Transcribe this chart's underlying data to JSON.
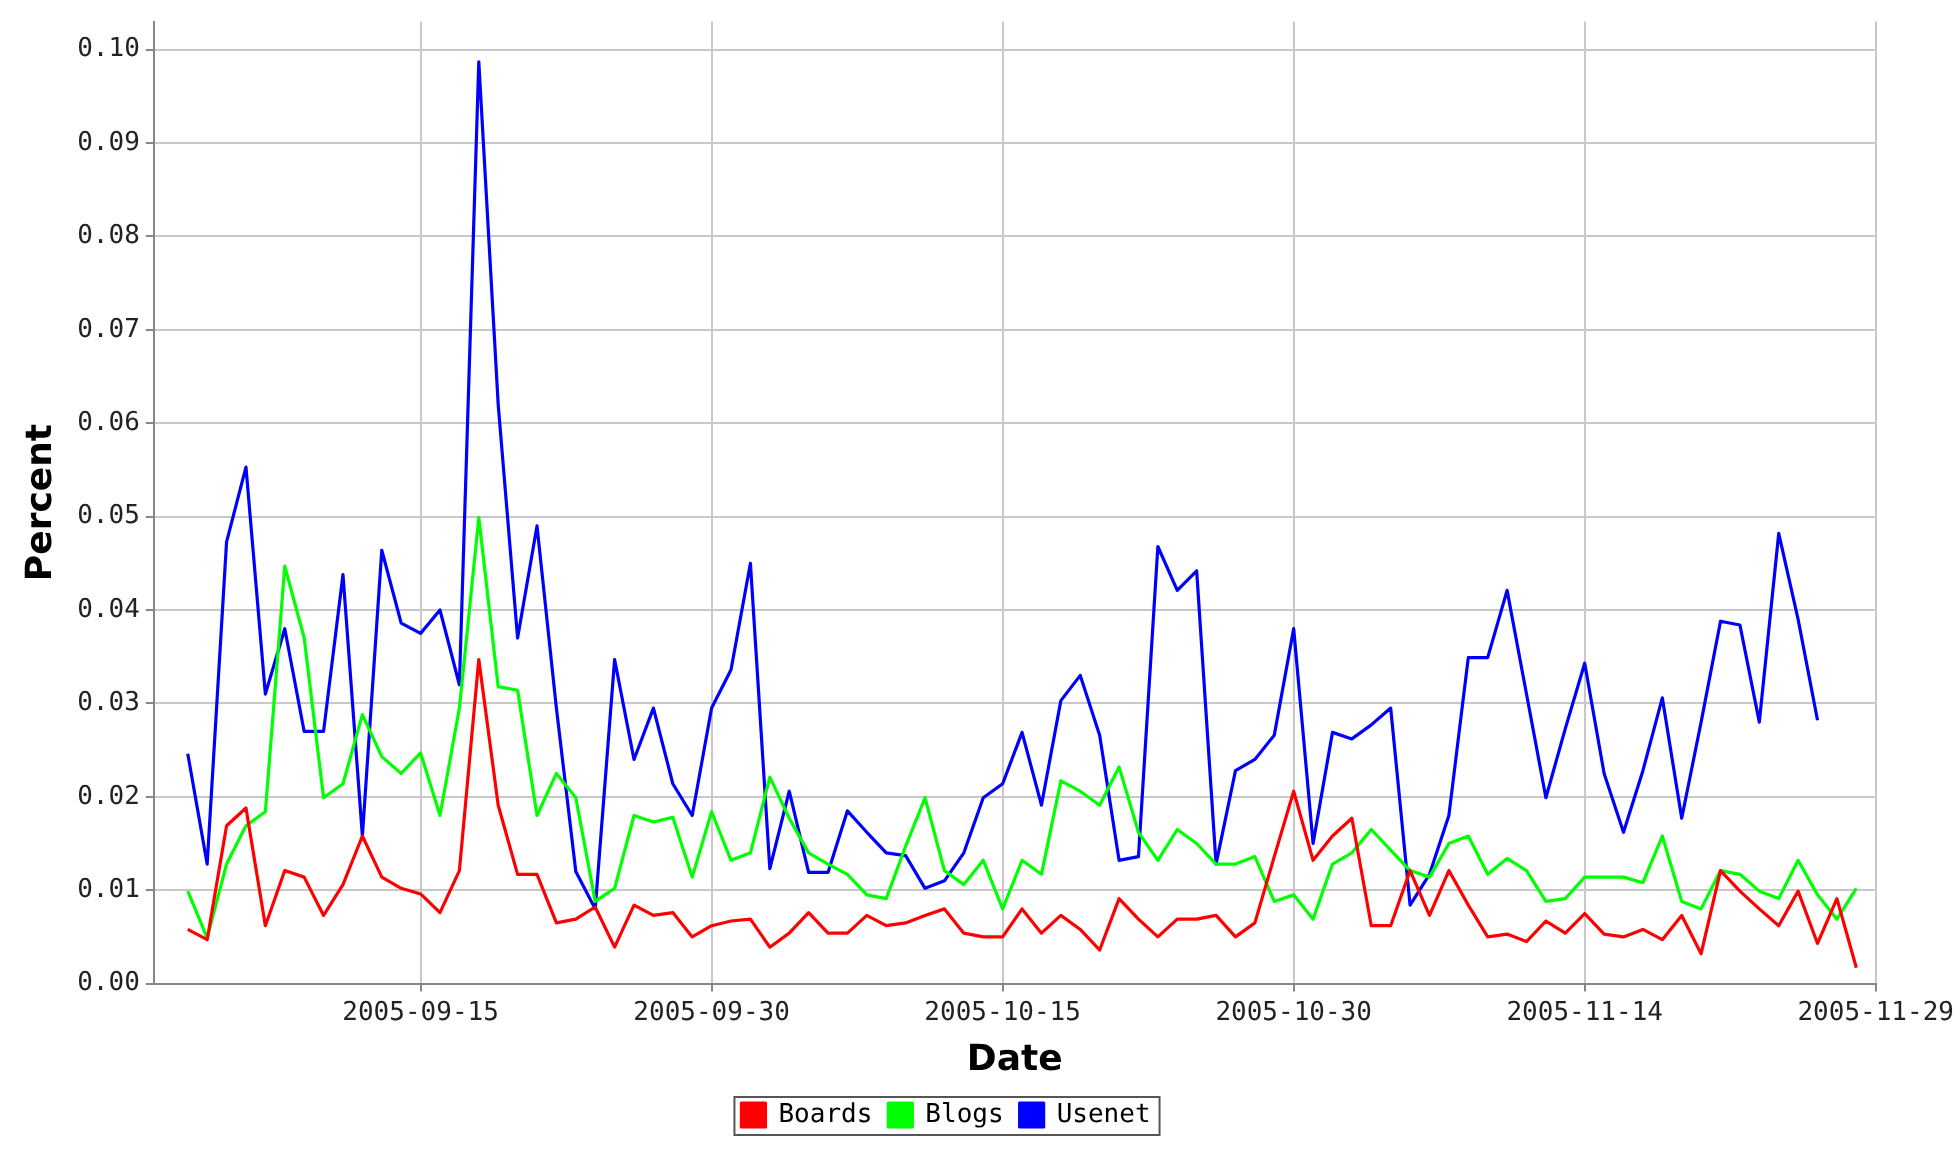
{
  "chart_data": {
    "type": "line",
    "xlabel": "Date",
    "ylabel": "Percent",
    "x": [
      "2005-09-03",
      "2005-09-04",
      "2005-09-05",
      "2005-09-06",
      "2005-09-07",
      "2005-09-08",
      "2005-09-09",
      "2005-09-10",
      "2005-09-11",
      "2005-09-12",
      "2005-09-13",
      "2005-09-14",
      "2005-09-15",
      "2005-09-16",
      "2005-09-17",
      "2005-09-18",
      "2005-09-19",
      "2005-09-20",
      "2005-09-21",
      "2005-09-22",
      "2005-09-23",
      "2005-09-24",
      "2005-09-25",
      "2005-09-26",
      "2005-09-27",
      "2005-09-28",
      "2005-09-29",
      "2005-09-30",
      "2005-10-01",
      "2005-10-02",
      "2005-10-03",
      "2005-10-04",
      "2005-10-05",
      "2005-10-06",
      "2005-10-07",
      "2005-10-08",
      "2005-10-09",
      "2005-10-10",
      "2005-10-11",
      "2005-10-12",
      "2005-10-13",
      "2005-10-14",
      "2005-10-15",
      "2005-10-16",
      "2005-10-17",
      "2005-10-18",
      "2005-10-19",
      "2005-10-20",
      "2005-10-21",
      "2005-10-22",
      "2005-10-23",
      "2005-10-24",
      "2005-10-25",
      "2005-10-26",
      "2005-10-27",
      "2005-10-28",
      "2005-10-29",
      "2005-10-30",
      "2005-10-31",
      "2005-11-01",
      "2005-11-02",
      "2005-11-03",
      "2005-11-04",
      "2005-11-05",
      "2005-11-06",
      "2005-11-07",
      "2005-11-08",
      "2005-11-09",
      "2005-11-10",
      "2005-11-11",
      "2005-11-12",
      "2005-11-13",
      "2005-11-14",
      "2005-11-15",
      "2005-11-16",
      "2005-11-17",
      "2005-11-18",
      "2005-11-19",
      "2005-11-20",
      "2005-11-21",
      "2005-11-22",
      "2005-11-23",
      "2005-11-24",
      "2005-11-25",
      "2005-11-26",
      "2005-11-27",
      "2005-11-28"
    ],
    "series": [
      {
        "name": "Boards",
        "color": "#ff0000",
        "values": [
          0.0058,
          0.0047,
          0.0169,
          0.0188,
          0.0062,
          0.0121,
          0.0114,
          0.0073,
          0.0106,
          0.0158,
          0.0114,
          0.0102,
          0.0096,
          0.0076,
          0.0121,
          0.0347,
          0.0191,
          0.0117,
          0.0117,
          0.0065,
          0.0069,
          0.0082,
          0.0039,
          0.0084,
          0.0073,
          0.0076,
          0.005,
          0.0062,
          0.0067,
          0.0069,
          0.0039,
          0.0054,
          0.0076,
          0.0054,
          0.0054,
          0.0073,
          0.0062,
          0.0065,
          0.0073,
          0.008,
          0.0054,
          0.005,
          0.005,
          0.008,
          0.0054,
          0.0073,
          0.0058,
          0.0036,
          0.0091,
          0.0069,
          0.005,
          0.0069,
          0.0069,
          0.0073,
          0.005,
          0.0065,
          0.0136,
          0.0206,
          0.0132,
          0.0158,
          0.0177,
          0.0062,
          0.0062,
          0.0121,
          0.0073,
          0.0121,
          0.0084,
          0.005,
          0.0053,
          0.0045,
          0.0067,
          0.0054,
          0.0075,
          0.0053,
          0.005,
          0.0058,
          0.0047,
          0.0073,
          0.0032,
          0.0121,
          0.0099,
          0.008,
          0.0062,
          0.0099,
          0.0043,
          0.0091,
          0.0017
        ]
      },
      {
        "name": "Blogs",
        "color": "#00ff00",
        "values": [
          0.0099,
          0.0049,
          0.0128,
          0.0169,
          0.0184,
          0.0447,
          0.037,
          0.0199,
          0.0214,
          0.0288,
          0.0243,
          0.0225,
          0.0247,
          0.018,
          0.0295,
          0.0499,
          0.0318,
          0.0314,
          0.018,
          0.0225,
          0.0199,
          0.0088,
          0.0102,
          0.018,
          0.0173,
          0.0178,
          0.0114,
          0.0184,
          0.0132,
          0.014,
          0.0221,
          0.0177,
          0.014,
          0.0128,
          0.0117,
          0.0095,
          0.0091,
          0.0147,
          0.0199,
          0.0121,
          0.0106,
          0.0132,
          0.008,
          0.0132,
          0.0117,
          0.0217,
          0.0206,
          0.0191,
          0.0232,
          0.0162,
          0.0132,
          0.0165,
          0.015,
          0.0128,
          0.0128,
          0.0136,
          0.0088,
          0.0095,
          0.0069,
          0.0128,
          0.014,
          0.0165,
          0.0143,
          0.0121,
          0.0114,
          0.015,
          0.0158,
          0.0117,
          0.0134,
          0.0121,
          0.0088,
          0.0091,
          0.0114,
          0.0114,
          0.0114,
          0.0108,
          0.0158,
          0.0088,
          0.008,
          0.0121,
          0.0117,
          0.0099,
          0.0091,
          0.0132,
          0.0095,
          0.0069,
          0.0102
        ]
      },
      {
        "name": "Usenet",
        "color": "#0000ff",
        "values": [
          0.0246,
          0.0128,
          0.0473,
          0.0553,
          0.031,
          0.038,
          0.027,
          0.027,
          0.0438,
          0.0158,
          0.0464,
          0.0386,
          0.0375,
          0.04,
          0.032,
          0.0987,
          0.062,
          0.037,
          0.049,
          0.0295,
          0.012,
          0.008,
          0.0347,
          0.024,
          0.0295,
          0.0214,
          0.018,
          0.0295,
          0.0336,
          0.045,
          0.0123,
          0.0206,
          0.0119,
          0.0119,
          0.0185,
          0.0162,
          0.014,
          0.0137,
          0.0102,
          0.011,
          0.014,
          0.0199,
          0.0214,
          0.0269,
          0.0191,
          0.0303,
          0.033,
          0.0266,
          0.0132,
          0.0136,
          0.0468,
          0.0421,
          0.0442,
          0.0128,
          0.0228,
          0.024,
          0.0266,
          0.038,
          0.015,
          0.0269,
          0.0262,
          0.0277,
          0.0295,
          0.0084,
          0.0117,
          0.018,
          0.0349,
          0.0349,
          0.0421,
          0.031,
          0.0199,
          0.0273,
          0.0343,
          0.0225,
          0.0162,
          0.0228,
          0.0306,
          0.0177,
          0.028,
          0.0388,
          0.0384,
          0.028,
          0.0482,
          0.039,
          0.0282,
          null,
          null
        ]
      }
    ],
    "xlim": [
      "2005-09-01T06:00",
      "2005-11-29"
    ],
    "xticks": [
      "2005-09-15",
      "2005-09-30",
      "2005-10-15",
      "2005-10-30",
      "2005-11-14",
      "2005-11-29"
    ],
    "ylim": [
      0,
      0.103
    ],
    "yticks": [
      {
        "value": 0,
        "label": "0.00"
      },
      {
        "value": 0.01,
        "label": "0.01"
      },
      {
        "value": 0.02,
        "label": "0.02"
      },
      {
        "value": 0.03,
        "label": "0.03"
      },
      {
        "value": 0.04,
        "label": "0.04"
      },
      {
        "value": 0.05,
        "label": "0.05"
      },
      {
        "value": 0.06,
        "label": "0.06"
      },
      {
        "value": 0.07,
        "label": "0.07"
      },
      {
        "value": 0.08,
        "label": "0.08"
      },
      {
        "value": 0.09,
        "label": "0.09"
      },
      {
        "value": 0.1,
        "label": "0.10"
      }
    ],
    "grid": true,
    "legend": "bottom",
    "marker": "none",
    "line_style": "solid"
  }
}
